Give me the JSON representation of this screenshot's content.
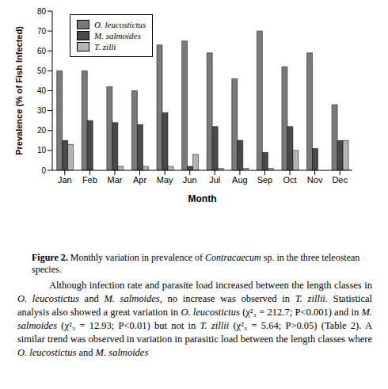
{
  "chart_data": {
    "type": "bar",
    "x_label": "Month",
    "y_label": "Prevalence (% of Fish Infected)",
    "categories": [
      "Jan",
      "Feb",
      "Mar",
      "Apr",
      "May",
      "Jun",
      "Jul",
      "Aug",
      "Sep",
      "Oct",
      "Nov",
      "Dec"
    ],
    "series": [
      {
        "name": "O. leucostictus",
        "color": "#7a7a7a",
        "values": [
          50,
          50,
          42,
          40,
          63,
          65,
          59,
          46,
          70,
          52,
          59,
          33
        ]
      },
      {
        "name": "M. salmoides",
        "color": "#4a4a4a",
        "values": [
          15,
          25,
          24,
          23,
          29,
          2,
          22,
          15,
          9,
          22,
          11,
          15
        ]
      },
      {
        "name": "T. zilli",
        "color": "#b4b4b4",
        "values": [
          13,
          0,
          2,
          2,
          2,
          8,
          1,
          1,
          1,
          10,
          0,
          15
        ]
      }
    ],
    "ylim": [
      0,
      80
    ],
    "yticks": [
      0,
      10,
      20,
      30,
      40,
      50,
      60,
      70,
      80
    ],
    "legend": "upper left",
    "grid": false
  },
  "caption": [
    {
      "t": "Figure 2.",
      "b": true
    },
    {
      "t": " Monthly variation in prevalence of "
    },
    {
      "t": "Contracaecum",
      "i": true
    },
    {
      "t": " sp. in the three teleostean species."
    }
  ],
  "body": [
    {
      "t": "Although infection rate and parasite load increased between the length classes in "
    },
    {
      "t": "O. leucostictus",
      "i": true
    },
    {
      "t": " and "
    },
    {
      "t": "M. salmoides",
      "i": true
    },
    {
      "t": ", no increase was observed in "
    },
    {
      "t": "T. zillii",
      "i": true
    },
    {
      "t": ". Statistical analysis also showed a great variation in "
    },
    {
      "t": "O. leucostictus",
      "i": true
    },
    {
      "t": " (χ²₃ = 212.7; P<0.001) and in "
    },
    {
      "t": "M. salmoides",
      "i": true
    },
    {
      "t": " (χ²₃ = 12.93; P<0.01) but not in "
    },
    {
      "t": "T. zillii",
      "i": true
    },
    {
      "t": " (χ²₃ = 5.64; P>0.05) (Table 2). A similar trend was observed in variation in parasitic load between the length classes where "
    },
    {
      "t": "O. leucostictus",
      "i": true
    },
    {
      "t": " and "
    },
    {
      "t": "M. salmoides",
      "i": true
    }
  ]
}
